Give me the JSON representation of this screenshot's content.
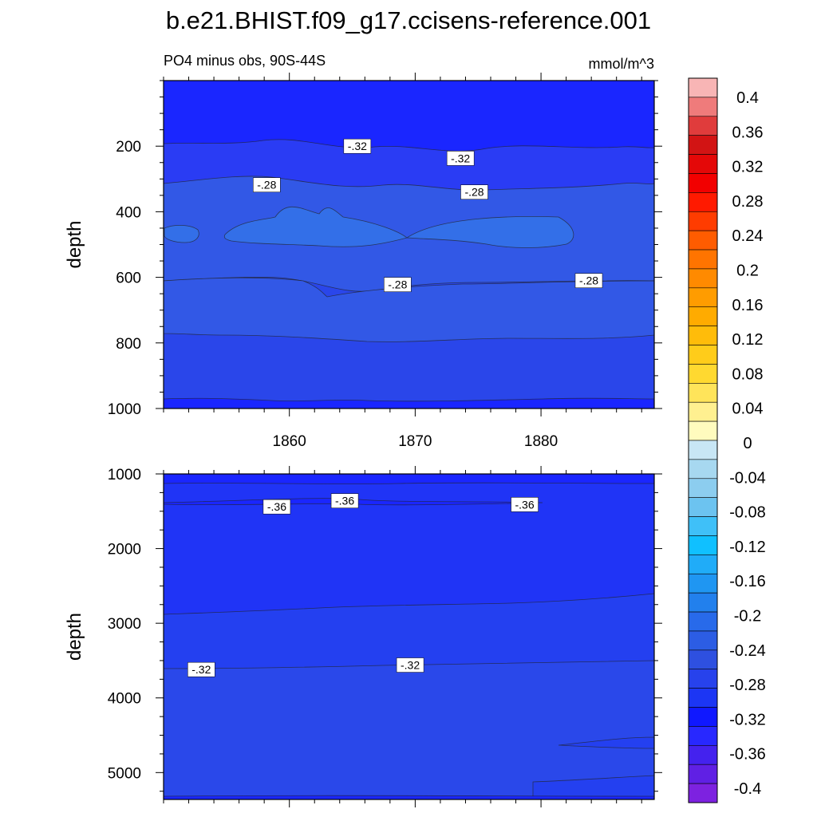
{
  "chart_data": {
    "type": "heatmap",
    "title": "b.e21.BHIST.f09_g17.ccisens-reference.001",
    "subtitle_left": "PO4 minus obs, 90S-44S",
    "subtitle_right": "mmol/m^3",
    "x_range": [
      1850,
      1889
    ],
    "x_ticks": [
      "1860",
      "1870",
      "1880"
    ],
    "x_tick_values": [
      1860,
      1870,
      1880
    ],
    "panels": [
      {
        "name": "upper",
        "ylabel": "depth",
        "ylim": [
          0,
          1000
        ],
        "y_ticks": [
          "200",
          "400",
          "600",
          "800",
          "1000"
        ],
        "y_tick_values": [
          200,
          400,
          600,
          800,
          1000
        ],
        "contour_labels": [
          {
            "text": "-.32",
            "year": 1865.4,
            "depth": 200
          },
          {
            "text": "-.32",
            "year": 1873.6,
            "depth": 237
          },
          {
            "text": "-.28",
            "year": 1858.2,
            "depth": 318
          },
          {
            "text": "-.28",
            "year": 1874.7,
            "depth": 340
          },
          {
            "text": "-.28",
            "year": 1868.6,
            "depth": 622
          },
          {
            "text": "-.28",
            "year": 1883.8,
            "depth": 610
          }
        ]
      },
      {
        "name": "lower",
        "ylabel": "depth",
        "ylim": [
          1000,
          5360
        ],
        "y_ticks": [
          "1000",
          "2000",
          "3000",
          "4000",
          "5000"
        ],
        "y_tick_values": [
          1000,
          2000,
          3000,
          4000,
          5000
        ],
        "contour_labels": [
          {
            "text": "-.36",
            "year": 1859.0,
            "depth": 1440
          },
          {
            "text": "-.36",
            "year": 1864.4,
            "depth": 1360
          },
          {
            "text": "-.36",
            "year": 1878.7,
            "depth": 1410
          },
          {
            "text": "-.32",
            "year": 1853.0,
            "depth": 3620
          },
          {
            "text": "-.32",
            "year": 1869.6,
            "depth": 3560
          }
        ]
      }
    ],
    "colorbar": {
      "labels": [
        "0.4",
        "0.36",
        "0.32",
        "0.28",
        "0.24",
        "0.2",
        "0.16",
        "0.12",
        "0.08",
        "0.04",
        "0",
        "-0.04",
        "-0.08",
        "-0.12",
        "-0.16",
        "-0.2",
        "-0.24",
        "-0.28",
        "-0.32",
        "-0.36",
        "-0.4"
      ],
      "colors": [
        "#f8b5b5",
        "#ef7b7b",
        "#e03c3c",
        "#d21414",
        "#e40808",
        "#f20000",
        "#ff1a00",
        "#ff3c00",
        "#ff5c00",
        "#ff7400",
        "#ff8a00",
        "#ff9c00",
        "#ffab00",
        "#ffbc0a",
        "#ffcc1a",
        "#ffd930",
        "#ffe45a",
        "#fff090",
        "#fffbbe",
        "#c8e6f5",
        "#a7d8f0",
        "#8ccdef",
        "#6cc3f0",
        "#3fc0f8",
        "#10c0ff",
        "#20acf8",
        "#1f96f2",
        "#2280ed",
        "#286aea",
        "#2c5de4",
        "#2e50e0",
        "#2742ec",
        "#1c36f4",
        "#1018ff",
        "#2828ff",
        "#4422ee",
        "#6020e4",
        "#7d22e0"
      ]
    },
    "fill_colors": {
      "upper_top": "#1a26ff",
      "upper_band1": "#2a3cf4",
      "upper_band2": "#3258e6",
      "upper_core": "#336fe8",
      "upper_deep": "#2a46ea",
      "lower_top": "#1a26ff",
      "lower_main": "#2034f6",
      "lower_mid": "#2440f0",
      "lower_deep": "#2a48ea"
    }
  }
}
